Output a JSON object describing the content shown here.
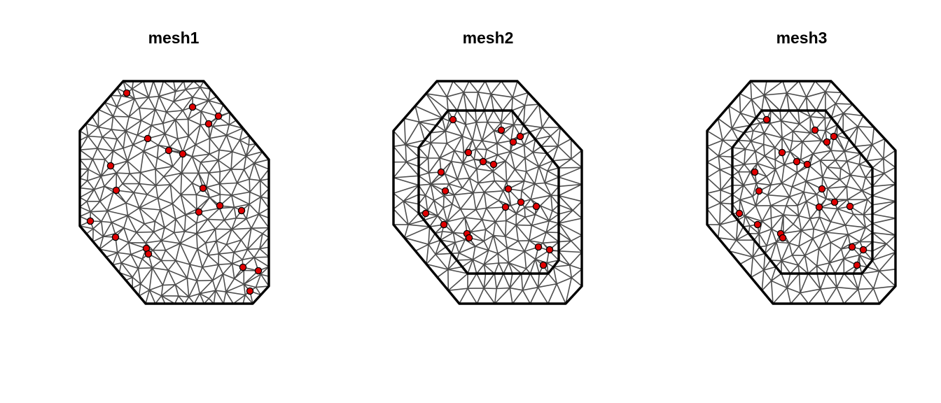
{
  "colors": {
    "background": "#ffffff",
    "mesh_edge": "#4d4d4d",
    "boundary": "#000000",
    "point_fill": "#e00000",
    "point_stroke": "#000000"
  },
  "panels": [
    {
      "title": "mesh1",
      "boundary": "single",
      "points": [
        [
          181,
          133
        ],
        [
          275,
          153
        ],
        [
          312,
          166
        ],
        [
          298,
          177
        ],
        [
          211,
          198
        ],
        [
          241,
          215
        ],
        [
          261,
          220
        ],
        [
          158,
          237
        ],
        [
          166,
          272
        ],
        [
          290,
          269
        ],
        [
          314,
          294
        ],
        [
          345,
          301
        ],
        [
          284,
          303
        ],
        [
          129,
          316
        ],
        [
          165,
          339
        ],
        [
          209,
          355
        ],
        [
          212,
          363
        ],
        [
          347,
          382
        ],
        [
          369,
          387
        ],
        [
          357,
          416
        ]
      ]
    },
    {
      "title": "mesh2",
      "boundary": "inner-outer",
      "points": [
        [
          647,
          171
        ],
        [
          716,
          186
        ],
        [
          743,
          195
        ],
        [
          733,
          203
        ],
        [
          669,
          218
        ],
        [
          690,
          231
        ],
        [
          705,
          235
        ],
        [
          630,
          246
        ],
        [
          636,
          273
        ],
        [
          726,
          270
        ],
        [
          744,
          289
        ],
        [
          766,
          295
        ],
        [
          722,
          296
        ],
        [
          608,
          305
        ],
        [
          634,
          321
        ],
        [
          667,
          334
        ],
        [
          670,
          340
        ],
        [
          769,
          353
        ],
        [
          785,
          357
        ],
        [
          776,
          379
        ]
      ]
    },
    {
      "title": "mesh3",
      "boundary": "inner-outer",
      "points": [
        [
          1095,
          171
        ],
        [
          1164,
          186
        ],
        [
          1191,
          195
        ],
        [
          1181,
          203
        ],
        [
          1117,
          218
        ],
        [
          1138,
          231
        ],
        [
          1153,
          235
        ],
        [
          1078,
          246
        ],
        [
          1084,
          273
        ],
        [
          1174,
          270
        ],
        [
          1192,
          289
        ],
        [
          1214,
          295
        ],
        [
          1170,
          296
        ],
        [
          1056,
          305
        ],
        [
          1082,
          321
        ],
        [
          1115,
          334
        ],
        [
          1118,
          340
        ],
        [
          1217,
          353
        ],
        [
          1233,
          357
        ],
        [
          1224,
          379
        ]
      ]
    }
  ]
}
